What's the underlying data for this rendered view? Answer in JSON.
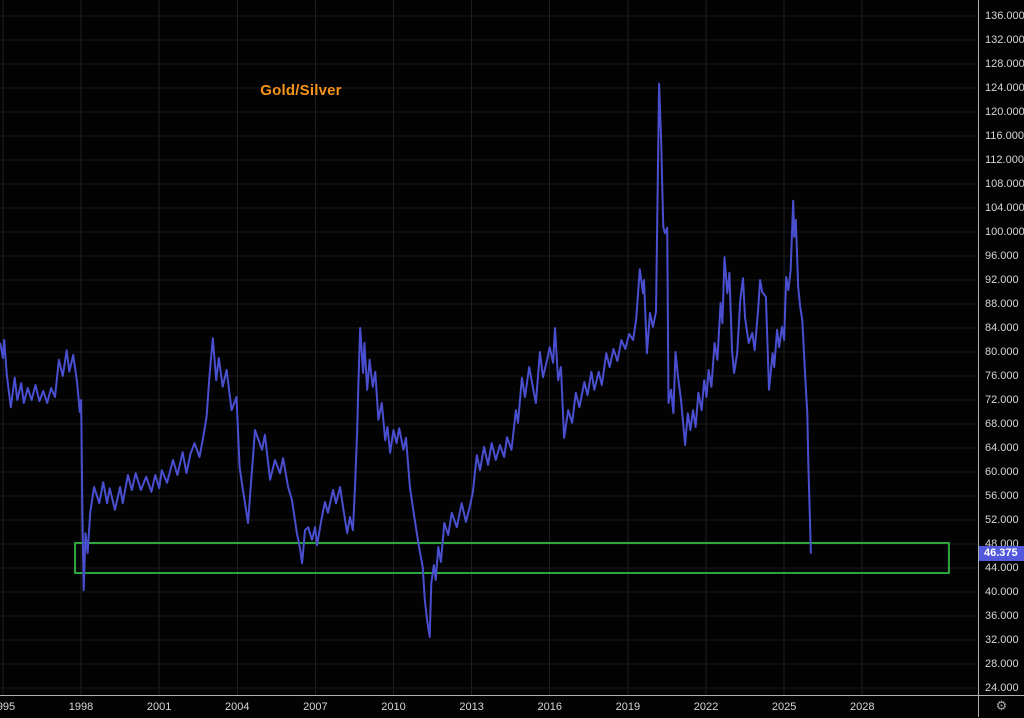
{
  "chart": {
    "title": "Gold/Silver",
    "last_price": "46.375",
    "colors": {
      "background": "#030303",
      "title": "#f7941d",
      "line": "#4a4fd0",
      "price_tag_bg": "#5359dd",
      "price_tag_text": "#ffffff",
      "axis_text": "#d6d6d6",
      "axis_border": "#b0b0b0",
      "grid_h": "#181818",
      "grid_v": "#1f1f1f",
      "zone_border": "#2ea83c"
    }
  },
  "icons": {
    "gear": "⚙"
  },
  "axes": {
    "x_ticks": [
      1995,
      1998,
      2001,
      2004,
      2007,
      2010,
      2013,
      2016,
      2019,
      2022,
      2025,
      2028
    ],
    "y_ticks": [
      136,
      132,
      128,
      124,
      120,
      116,
      112,
      108,
      104,
      100,
      96,
      92,
      88,
      84,
      80,
      76,
      72,
      68,
      64,
      60,
      56,
      52,
      48,
      44,
      40,
      36,
      32,
      28,
      24
    ],
    "y_decimal_places": 3
  },
  "chart_data": {
    "type": "line",
    "title": "Gold/Silver",
    "xlabel": "",
    "ylabel": "",
    "grid": "on",
    "legend": "none",
    "x_domain": [
      1994.887,
      2032.447
    ],
    "y_domain": [
      22.833,
      138.667
    ],
    "x_tick_step_years": 3,
    "y_tick_step": 4,
    "last_price": 46.375,
    "annotations": {
      "text_label": {
        "text": "Gold/Silver",
        "x_year": 2009.8,
        "y_value": 123.5,
        "color": "#f7941d"
      },
      "support_zone_rect": {
        "x1_year": 1997.77,
        "x2_year": 2031.33,
        "top_value": 48.17,
        "bottom_value": 43.17,
        "border_color": "#2ea83c"
      }
    },
    "series": [
      {
        "name": "Gold/Silver ratio",
        "color": "#4a4fd0",
        "points": [
          [
            1994.9,
            81.5
          ],
          [
            1995.0,
            79.0
          ],
          [
            1995.05,
            82.0
          ],
          [
            1995.15,
            76.2
          ],
          [
            1995.3,
            70.8
          ],
          [
            1995.45,
            75.7
          ],
          [
            1995.55,
            72.0
          ],
          [
            1995.7,
            74.8
          ],
          [
            1995.8,
            71.5
          ],
          [
            1995.95,
            74.0
          ],
          [
            1996.1,
            72.0
          ],
          [
            1996.25,
            74.5
          ],
          [
            1996.4,
            71.8
          ],
          [
            1996.55,
            73.5
          ],
          [
            1996.7,
            71.5
          ],
          [
            1996.85,
            74.0
          ],
          [
            1997.0,
            72.5
          ],
          [
            1997.15,
            78.7
          ],
          [
            1997.3,
            76.0
          ],
          [
            1997.45,
            80.3
          ],
          [
            1997.55,
            76.7
          ],
          [
            1997.7,
            79.5
          ],
          [
            1997.85,
            74.8
          ],
          [
            1997.95,
            70.0
          ],
          [
            1998.0,
            72.0
          ],
          [
            1998.05,
            53.2
          ],
          [
            1998.1,
            40.3
          ],
          [
            1998.17,
            49.8
          ],
          [
            1998.25,
            46.5
          ],
          [
            1998.35,
            53.2
          ],
          [
            1998.5,
            57.5
          ],
          [
            1998.7,
            54.8
          ],
          [
            1998.85,
            58.3
          ],
          [
            1999.0,
            54.8
          ],
          [
            1999.1,
            57.3
          ],
          [
            1999.3,
            53.7
          ],
          [
            1999.5,
            57.5
          ],
          [
            1999.6,
            54.8
          ],
          [
            1999.8,
            59.5
          ],
          [
            1999.95,
            57.0
          ],
          [
            2000.1,
            59.8
          ],
          [
            2000.3,
            57.0
          ],
          [
            2000.5,
            59.2
          ],
          [
            2000.7,
            56.7
          ],
          [
            2000.85,
            59.5
          ],
          [
            2001.0,
            57.3
          ],
          [
            2001.1,
            60.3
          ],
          [
            2001.3,
            58.2
          ],
          [
            2001.53,
            62.0
          ],
          [
            2001.7,
            59.5
          ],
          [
            2001.9,
            63.3
          ],
          [
            2002.05,
            59.8
          ],
          [
            2002.2,
            63.0
          ],
          [
            2002.36,
            64.8
          ],
          [
            2002.55,
            62.5
          ],
          [
            2002.7,
            66.0
          ],
          [
            2002.82,
            69.2
          ],
          [
            2002.93,
            75.8
          ],
          [
            2003.06,
            82.3
          ],
          [
            2003.19,
            75.3
          ],
          [
            2003.29,
            79.0
          ],
          [
            2003.44,
            74.2
          ],
          [
            2003.59,
            77.0
          ],
          [
            2003.78,
            70.3
          ],
          [
            2003.97,
            72.5
          ],
          [
            2004.09,
            60.8
          ],
          [
            2004.2,
            57.5
          ],
          [
            2004.41,
            51.5
          ],
          [
            2004.68,
            67.0
          ],
          [
            2004.95,
            63.7
          ],
          [
            2005.06,
            66.2
          ],
          [
            2005.26,
            58.7
          ],
          [
            2005.45,
            62.0
          ],
          [
            2005.64,
            59.8
          ],
          [
            2005.76,
            62.3
          ],
          [
            2005.95,
            57.5
          ],
          [
            2006.1,
            55.3
          ],
          [
            2006.29,
            49.8
          ],
          [
            2006.41,
            47.3
          ],
          [
            2006.49,
            44.8
          ],
          [
            2006.6,
            50.3
          ],
          [
            2006.72,
            50.8
          ],
          [
            2006.87,
            48.7
          ],
          [
            2006.99,
            50.8
          ],
          [
            2007.06,
            47.8
          ],
          [
            2007.25,
            52.5
          ],
          [
            2007.37,
            55.0
          ],
          [
            2007.48,
            53.2
          ],
          [
            2007.68,
            57.0
          ],
          [
            2007.79,
            54.8
          ],
          [
            2007.95,
            57.5
          ],
          [
            2008.06,
            54.2
          ],
          [
            2008.22,
            49.8
          ],
          [
            2008.33,
            52.5
          ],
          [
            2008.44,
            50.3
          ],
          [
            2008.52,
            57.5
          ],
          [
            2008.6,
            66.5
          ],
          [
            2008.65,
            74.8
          ],
          [
            2008.72,
            84.0
          ],
          [
            2008.83,
            76.5
          ],
          [
            2008.88,
            81.5
          ],
          [
            2008.99,
            73.7
          ],
          [
            2009.08,
            78.7
          ],
          [
            2009.2,
            74.2
          ],
          [
            2009.3,
            76.7
          ],
          [
            2009.42,
            68.7
          ],
          [
            2009.55,
            71.5
          ],
          [
            2009.68,
            65.3
          ],
          [
            2009.77,
            67.5
          ],
          [
            2009.87,
            63.2
          ],
          [
            2010.0,
            67.0
          ],
          [
            2010.12,
            64.8
          ],
          [
            2010.22,
            67.3
          ],
          [
            2010.38,
            63.7
          ],
          [
            2010.48,
            65.7
          ],
          [
            2010.63,
            57.5
          ],
          [
            2010.74,
            54.2
          ],
          [
            2010.86,
            50.8
          ],
          [
            2010.98,
            47.5
          ],
          [
            2011.12,
            44.2
          ],
          [
            2011.2,
            38.7
          ],
          [
            2011.29,
            35.3
          ],
          [
            2011.39,
            32.5
          ],
          [
            2011.45,
            41.5
          ],
          [
            2011.55,
            44.5
          ],
          [
            2011.62,
            42.0
          ],
          [
            2011.72,
            47.5
          ],
          [
            2011.82,
            45.0
          ],
          [
            2011.95,
            51.5
          ],
          [
            2012.1,
            49.5
          ],
          [
            2012.24,
            53.2
          ],
          [
            2012.43,
            50.8
          ],
          [
            2012.62,
            54.8
          ],
          [
            2012.78,
            51.7
          ],
          [
            2012.93,
            54.2
          ],
          [
            2013.05,
            56.7
          ],
          [
            2013.2,
            62.8
          ],
          [
            2013.32,
            60.3
          ],
          [
            2013.48,
            64.2
          ],
          [
            2013.63,
            61.2
          ],
          [
            2013.77,
            64.8
          ],
          [
            2013.93,
            62.0
          ],
          [
            2014.09,
            64.5
          ],
          [
            2014.25,
            62.5
          ],
          [
            2014.36,
            65.8
          ],
          [
            2014.53,
            63.7
          ],
          [
            2014.7,
            70.3
          ],
          [
            2014.78,
            68.2
          ],
          [
            2014.93,
            75.7
          ],
          [
            2015.05,
            72.5
          ],
          [
            2015.21,
            77.5
          ],
          [
            2015.35,
            74.2
          ],
          [
            2015.47,
            71.5
          ],
          [
            2015.62,
            80.0
          ],
          [
            2015.74,
            75.8
          ],
          [
            2015.9,
            78.7
          ],
          [
            2016.0,
            80.8
          ],
          [
            2016.13,
            78.2
          ],
          [
            2016.2,
            84.0
          ],
          [
            2016.32,
            75.3
          ],
          [
            2016.43,
            77.5
          ],
          [
            2016.55,
            65.7
          ],
          [
            2016.71,
            70.3
          ],
          [
            2016.86,
            68.2
          ],
          [
            2017.0,
            73.2
          ],
          [
            2017.14,
            70.8
          ],
          [
            2017.33,
            75.0
          ],
          [
            2017.45,
            72.8
          ],
          [
            2017.6,
            76.7
          ],
          [
            2017.71,
            73.7
          ],
          [
            2017.88,
            76.7
          ],
          [
            2018.0,
            74.5
          ],
          [
            2018.17,
            79.8
          ],
          [
            2018.3,
            77.5
          ],
          [
            2018.45,
            80.5
          ],
          [
            2018.6,
            78.5
          ],
          [
            2018.75,
            82.0
          ],
          [
            2018.9,
            80.5
          ],
          [
            2019.05,
            83.0
          ],
          [
            2019.2,
            82.0
          ],
          [
            2019.32,
            85.5
          ],
          [
            2019.46,
            93.8
          ],
          [
            2019.58,
            89.8
          ],
          [
            2019.62,
            92.0
          ],
          [
            2019.73,
            79.8
          ],
          [
            2019.85,
            86.5
          ],
          [
            2019.96,
            84.2
          ],
          [
            2020.08,
            86.7
          ],
          [
            2020.2,
            124.7
          ],
          [
            2020.28,
            115.0
          ],
          [
            2020.31,
            109.2
          ],
          [
            2020.36,
            100.8
          ],
          [
            2020.43,
            99.8
          ],
          [
            2020.51,
            100.7
          ],
          [
            2020.56,
            71.5
          ],
          [
            2020.66,
            73.7
          ],
          [
            2020.75,
            69.8
          ],
          [
            2020.83,
            80.0
          ],
          [
            2020.93,
            75.8
          ],
          [
            2021.04,
            72.0
          ],
          [
            2021.12,
            68.2
          ],
          [
            2021.2,
            64.5
          ],
          [
            2021.3,
            69.8
          ],
          [
            2021.4,
            67.0
          ],
          [
            2021.5,
            70.3
          ],
          [
            2021.6,
            67.5
          ],
          [
            2021.71,
            73.2
          ],
          [
            2021.83,
            70.3
          ],
          [
            2021.93,
            75.3
          ],
          [
            2022.02,
            72.5
          ],
          [
            2022.1,
            77.0
          ],
          [
            2022.21,
            74.2
          ],
          [
            2022.33,
            81.5
          ],
          [
            2022.44,
            78.7
          ],
          [
            2022.56,
            88.2
          ],
          [
            2022.63,
            84.8
          ],
          [
            2022.71,
            95.8
          ],
          [
            2022.82,
            89.8
          ],
          [
            2022.9,
            93.2
          ],
          [
            2023.0,
            80.3
          ],
          [
            2023.08,
            76.5
          ],
          [
            2023.2,
            79.8
          ],
          [
            2023.32,
            88.7
          ],
          [
            2023.42,
            92.3
          ],
          [
            2023.5,
            85.8
          ],
          [
            2023.64,
            81.5
          ],
          [
            2023.78,
            83.2
          ],
          [
            2023.87,
            80.3
          ],
          [
            2024.0,
            87.0
          ],
          [
            2024.08,
            92.0
          ],
          [
            2024.16,
            90.0
          ],
          [
            2024.3,
            89.2
          ],
          [
            2024.42,
            73.7
          ],
          [
            2024.56,
            79.8
          ],
          [
            2024.62,
            77.5
          ],
          [
            2024.73,
            83.7
          ],
          [
            2024.81,
            80.8
          ],
          [
            2024.92,
            84.2
          ],
          [
            2025.0,
            82.0
          ],
          [
            2025.08,
            92.5
          ],
          [
            2025.16,
            90.3
          ],
          [
            2025.25,
            93.5
          ],
          [
            2025.35,
            105.2
          ],
          [
            2025.39,
            99.2
          ],
          [
            2025.45,
            102.0
          ],
          [
            2025.54,
            90.8
          ],
          [
            2025.62,
            87.5
          ],
          [
            2025.7,
            85.3
          ],
          [
            2025.82,
            75.3
          ],
          [
            2025.89,
            69.8
          ],
          [
            2025.93,
            61.5
          ],
          [
            2025.97,
            55.8
          ],
          [
            2026.03,
            46.375
          ]
        ]
      }
    ]
  }
}
